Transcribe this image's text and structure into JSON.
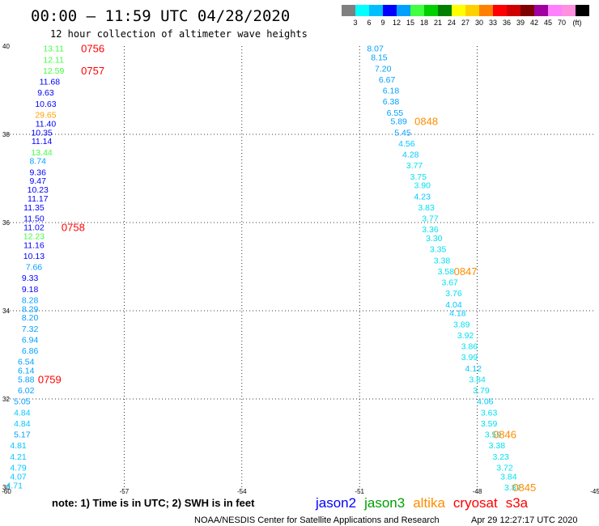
{
  "header": {
    "title": "00:00 – 11:59 UTC 04/28/2020",
    "subtitle": "12 hour collection of altimeter wave heights"
  },
  "legend": {
    "colors": [
      "#808080",
      "#00ffff",
      "#00bfff",
      "#0000ff",
      "#00a0ff",
      "#40ff40",
      "#00d000",
      "#008000",
      "#ffff00",
      "#ffd000",
      "#ff8000",
      "#ff0000",
      "#d00000",
      "#800000",
      "#a000a0",
      "#ff80ff",
      "#ff90e0",
      "#000000"
    ],
    "labels": [
      "3",
      "6",
      "9",
      "12",
      "15",
      "18",
      "21",
      "24",
      "27",
      "30",
      "33",
      "36",
      "39",
      "42",
      "45",
      "70",
      "(ft)"
    ]
  },
  "footer": {
    "note": "note:  1) Time is in UTC; 2) SWH is in feet",
    "sats": [
      {
        "name": "jason2",
        "color": "#0000ff"
      },
      {
        "name": "jason3",
        "color": "#00a000"
      },
      {
        "name": "altika",
        "color": "#ff8c00"
      },
      {
        "name": "cryosat",
        "color": "#ff0000"
      },
      {
        "name": "s3a",
        "color": "#ff0000"
      }
    ],
    "credit": "NOAA/NESDIS Center for Satellite Applications and Research",
    "timestamp": "Apr 29 12:27:17 UTC 2020"
  },
  "chart_data": {
    "type": "scatter",
    "title": "00:00 – 11:59 UTC 04/28/2020",
    "xlim": [
      -60,
      -45
    ],
    "ylim": [
      30,
      40
    ],
    "x_ticks": [
      "-60",
      "-57",
      "-54",
      "-51",
      "-48",
      "-45"
    ],
    "y_ticks": [
      "30",
      "32",
      "34",
      "36",
      "38",
      "40"
    ],
    "grid": true,
    "series": [
      {
        "name": "west track",
        "points": [
          {
            "x": -58.8,
            "y": 39.95,
            "label": "13.11",
            "color": "#40ff40"
          },
          {
            "x": -58.8,
            "y": 39.7,
            "label": "12.11",
            "color": "#40ff40"
          },
          {
            "x": -58.8,
            "y": 39.45,
            "label": "12.59",
            "color": "#40ff40"
          },
          {
            "x": -58.9,
            "y": 39.2,
            "label": "11.68",
            "color": "#0000ff"
          },
          {
            "x": -59.0,
            "y": 38.95,
            "label": "9.63",
            "color": "#0000ff"
          },
          {
            "x": -59.0,
            "y": 38.7,
            "label": "10.63",
            "color": "#0000ff"
          },
          {
            "x": -59.0,
            "y": 38.45,
            "label": "29.65",
            "color": "#ffa000"
          },
          {
            "x": -59.0,
            "y": 38.25,
            "label": "11.40",
            "color": "#0000ff"
          },
          {
            "x": -59.1,
            "y": 38.05,
            "label": "10.35",
            "color": "#0000ff"
          },
          {
            "x": -59.1,
            "y": 37.85,
            "label": "11.14",
            "color": "#0000ff"
          },
          {
            "x": -59.1,
            "y": 37.6,
            "label": "13.44",
            "color": "#40ff40"
          },
          {
            "x": -59.2,
            "y": 37.4,
            "label": "8.74",
            "color": "#00a0ff"
          },
          {
            "x": -59.2,
            "y": 37.15,
            "label": "9.36",
            "color": "#0000ff"
          },
          {
            "x": -59.2,
            "y": 36.95,
            "label": "9.47",
            "color": "#0000ff"
          },
          {
            "x": -59.2,
            "y": 36.75,
            "label": "10.23",
            "color": "#0000ff"
          },
          {
            "x": -59.2,
            "y": 36.55,
            "label": "11.17",
            "color": "#0000ff"
          },
          {
            "x": -59.3,
            "y": 36.35,
            "label": "11.35",
            "color": "#0000ff"
          },
          {
            "x": -59.3,
            "y": 36.1,
            "label": "11.50",
            "color": "#0000ff"
          },
          {
            "x": -59.3,
            "y": 35.9,
            "label": "11.02",
            "color": "#0000ff"
          },
          {
            "x": -59.3,
            "y": 35.7,
            "label": "12.23",
            "color": "#40ff40"
          },
          {
            "x": -59.3,
            "y": 35.5,
            "label": "11.16",
            "color": "#0000ff"
          },
          {
            "x": -59.3,
            "y": 35.25,
            "label": "10.13",
            "color": "#0000ff"
          },
          {
            "x": -59.3,
            "y": 35.0,
            "label": "7.66",
            "color": "#00a0ff"
          },
          {
            "x": -59.4,
            "y": 34.75,
            "label": "9.33",
            "color": "#0000ff"
          },
          {
            "x": -59.4,
            "y": 34.5,
            "label": "9.18",
            "color": "#0000ff"
          },
          {
            "x": -59.4,
            "y": 34.25,
            "label": "8.28",
            "color": "#00a0ff"
          },
          {
            "x": -59.4,
            "y": 34.05,
            "label": "8.29",
            "color": "#00a0ff"
          },
          {
            "x": -59.4,
            "y": 33.85,
            "label": "8.20",
            "color": "#00a0ff"
          },
          {
            "x": -59.4,
            "y": 33.6,
            "label": "7.32",
            "color": "#00a0ff"
          },
          {
            "x": -59.4,
            "y": 33.35,
            "label": "6.94",
            "color": "#00a0ff"
          },
          {
            "x": -59.4,
            "y": 33.1,
            "label": "6.86",
            "color": "#00a0ff"
          },
          {
            "x": -59.5,
            "y": 32.85,
            "label": "6.54",
            "color": "#00a0ff"
          },
          {
            "x": -59.5,
            "y": 32.65,
            "label": "6.14",
            "color": "#00a0ff"
          },
          {
            "x": -59.5,
            "y": 32.45,
            "label": "5.88",
            "color": "#00a0ff"
          },
          {
            "x": -59.5,
            "y": 32.2,
            "label": "6.02",
            "color": "#00a0ff"
          },
          {
            "x": -59.6,
            "y": 31.95,
            "label": "5.05",
            "color": "#00a0ff"
          },
          {
            "x": -59.6,
            "y": 31.7,
            "label": "4.84",
            "color": "#00c8ff"
          },
          {
            "x": -59.6,
            "y": 31.45,
            "label": "4.84",
            "color": "#00c8ff"
          },
          {
            "x": -59.6,
            "y": 31.2,
            "label": "5.17",
            "color": "#00a0ff"
          },
          {
            "x": -59.7,
            "y": 30.95,
            "label": "4.81",
            "color": "#00c8ff"
          },
          {
            "x": -59.7,
            "y": 30.7,
            "label": "4.21",
            "color": "#00c8ff"
          },
          {
            "x": -59.7,
            "y": 30.45,
            "label": "4.79",
            "color": "#00c8ff"
          },
          {
            "x": -59.7,
            "y": 30.25,
            "label": "4.07",
            "color": "#00c8ff"
          },
          {
            "x": -59.8,
            "y": 30.05,
            "label": "4.71",
            "color": "#00c8ff"
          }
        ]
      },
      {
        "name": "east track",
        "points": [
          {
            "x": -50.6,
            "y": 39.95,
            "label": "8.07",
            "color": "#00a0ff"
          },
          {
            "x": -50.5,
            "y": 39.75,
            "label": "8.15",
            "color": "#00a0ff"
          },
          {
            "x": -50.4,
            "y": 39.5,
            "label": "7.20",
            "color": "#00a0ff"
          },
          {
            "x": -50.3,
            "y": 39.25,
            "label": "6.67",
            "color": "#00a0ff"
          },
          {
            "x": -50.2,
            "y": 39.0,
            "label": "6.18",
            "color": "#00a0ff"
          },
          {
            "x": -50.2,
            "y": 38.75,
            "label": "6.38",
            "color": "#00a0ff"
          },
          {
            "x": -50.1,
            "y": 38.5,
            "label": "6.55",
            "color": "#00a0ff"
          },
          {
            "x": -50.0,
            "y": 38.3,
            "label": "5.89",
            "color": "#00a0ff"
          },
          {
            "x": -49.9,
            "y": 38.05,
            "label": "5.45",
            "color": "#00a0ff"
          },
          {
            "x": -49.8,
            "y": 37.8,
            "label": "4.56",
            "color": "#00c8ff"
          },
          {
            "x": -49.7,
            "y": 37.55,
            "label": "4.28",
            "color": "#00c8ff"
          },
          {
            "x": -49.6,
            "y": 37.3,
            "label": "3.77",
            "color": "#00e0f0"
          },
          {
            "x": -49.5,
            "y": 37.05,
            "label": "3.75",
            "color": "#00e0f0"
          },
          {
            "x": -49.4,
            "y": 36.85,
            "label": "3.90",
            "color": "#00e0f0"
          },
          {
            "x": -49.4,
            "y": 36.6,
            "label": "4.23",
            "color": "#00c8ff"
          },
          {
            "x": -49.3,
            "y": 36.35,
            "label": "3.83",
            "color": "#00e0f0"
          },
          {
            "x": -49.2,
            "y": 36.1,
            "label": "3.77",
            "color": "#00e0f0"
          },
          {
            "x": -49.2,
            "y": 35.85,
            "label": "3.36",
            "color": "#00e0f0"
          },
          {
            "x": -49.1,
            "y": 35.65,
            "label": "3.30",
            "color": "#00e0f0"
          },
          {
            "x": -49.0,
            "y": 35.4,
            "label": "3.35",
            "color": "#00e0f0"
          },
          {
            "x": -48.9,
            "y": 35.15,
            "label": "3.38",
            "color": "#00e0f0"
          },
          {
            "x": -48.8,
            "y": 34.9,
            "label": "3.58",
            "color": "#00e0f0"
          },
          {
            "x": -48.7,
            "y": 34.65,
            "label": "3.67",
            "color": "#00e0f0"
          },
          {
            "x": -48.6,
            "y": 34.4,
            "label": "3.76",
            "color": "#00e0f0"
          },
          {
            "x": -48.6,
            "y": 34.15,
            "label": "4.04",
            "color": "#00c8ff"
          },
          {
            "x": -48.5,
            "y": 33.95,
            "label": "4.18",
            "color": "#00c8ff"
          },
          {
            "x": -48.4,
            "y": 33.7,
            "label": "3.89",
            "color": "#00e0f0"
          },
          {
            "x": -48.3,
            "y": 33.45,
            "label": "3.92",
            "color": "#00e0f0"
          },
          {
            "x": -48.2,
            "y": 33.2,
            "label": "3.86",
            "color": "#00e0f0"
          },
          {
            "x": -48.2,
            "y": 32.95,
            "label": "3.99",
            "color": "#00e0f0"
          },
          {
            "x": -48.1,
            "y": 32.7,
            "label": "4.12",
            "color": "#00c8ff"
          },
          {
            "x": -48.0,
            "y": 32.45,
            "label": "3.84",
            "color": "#00e0f0"
          },
          {
            "x": -47.9,
            "y": 32.2,
            "label": "3.79",
            "color": "#00e0f0"
          },
          {
            "x": -47.8,
            "y": 31.95,
            "label": "4.06",
            "color": "#00c8ff"
          },
          {
            "x": -47.7,
            "y": 31.7,
            "label": "3.63",
            "color": "#00e0f0"
          },
          {
            "x": -47.7,
            "y": 31.45,
            "label": "3.59",
            "color": "#00e0f0"
          },
          {
            "x": -47.6,
            "y": 31.2,
            "label": "3.59",
            "color": "#00e0f0"
          },
          {
            "x": -47.5,
            "y": 30.95,
            "label": "3.38",
            "color": "#00e0f0"
          },
          {
            "x": -47.4,
            "y": 30.7,
            "label": "3.23",
            "color": "#00e0f0"
          },
          {
            "x": -47.3,
            "y": 30.45,
            "label": "3.72",
            "color": "#00e0f0"
          },
          {
            "x": -47.2,
            "y": 30.25,
            "label": "3.84",
            "color": "#00e0f0"
          },
          {
            "x": -47.1,
            "y": 30.0,
            "label": "3.87",
            "color": "#00e0f0"
          }
        ]
      }
    ],
    "annotations": [
      {
        "x": -57.8,
        "y": 39.95,
        "text": "0756",
        "color": "#ff0000"
      },
      {
        "x": -57.8,
        "y": 39.45,
        "text": "0757",
        "color": "#ff0000"
      },
      {
        "x": -58.3,
        "y": 35.9,
        "text": "0758",
        "color": "#ff0000"
      },
      {
        "x": -58.9,
        "y": 32.45,
        "text": "0759",
        "color": "#ff0000"
      },
      {
        "x": -49.3,
        "y": 38.3,
        "text": "0848",
        "color": "#ff8c00"
      },
      {
        "x": -48.3,
        "y": 34.9,
        "text": "0847",
        "color": "#ff8c00"
      },
      {
        "x": -47.3,
        "y": 31.2,
        "text": "0846",
        "color": "#ff8c00"
      },
      {
        "x": -46.8,
        "y": 30.0,
        "text": "0845",
        "color": "#ff8c00"
      }
    ]
  }
}
